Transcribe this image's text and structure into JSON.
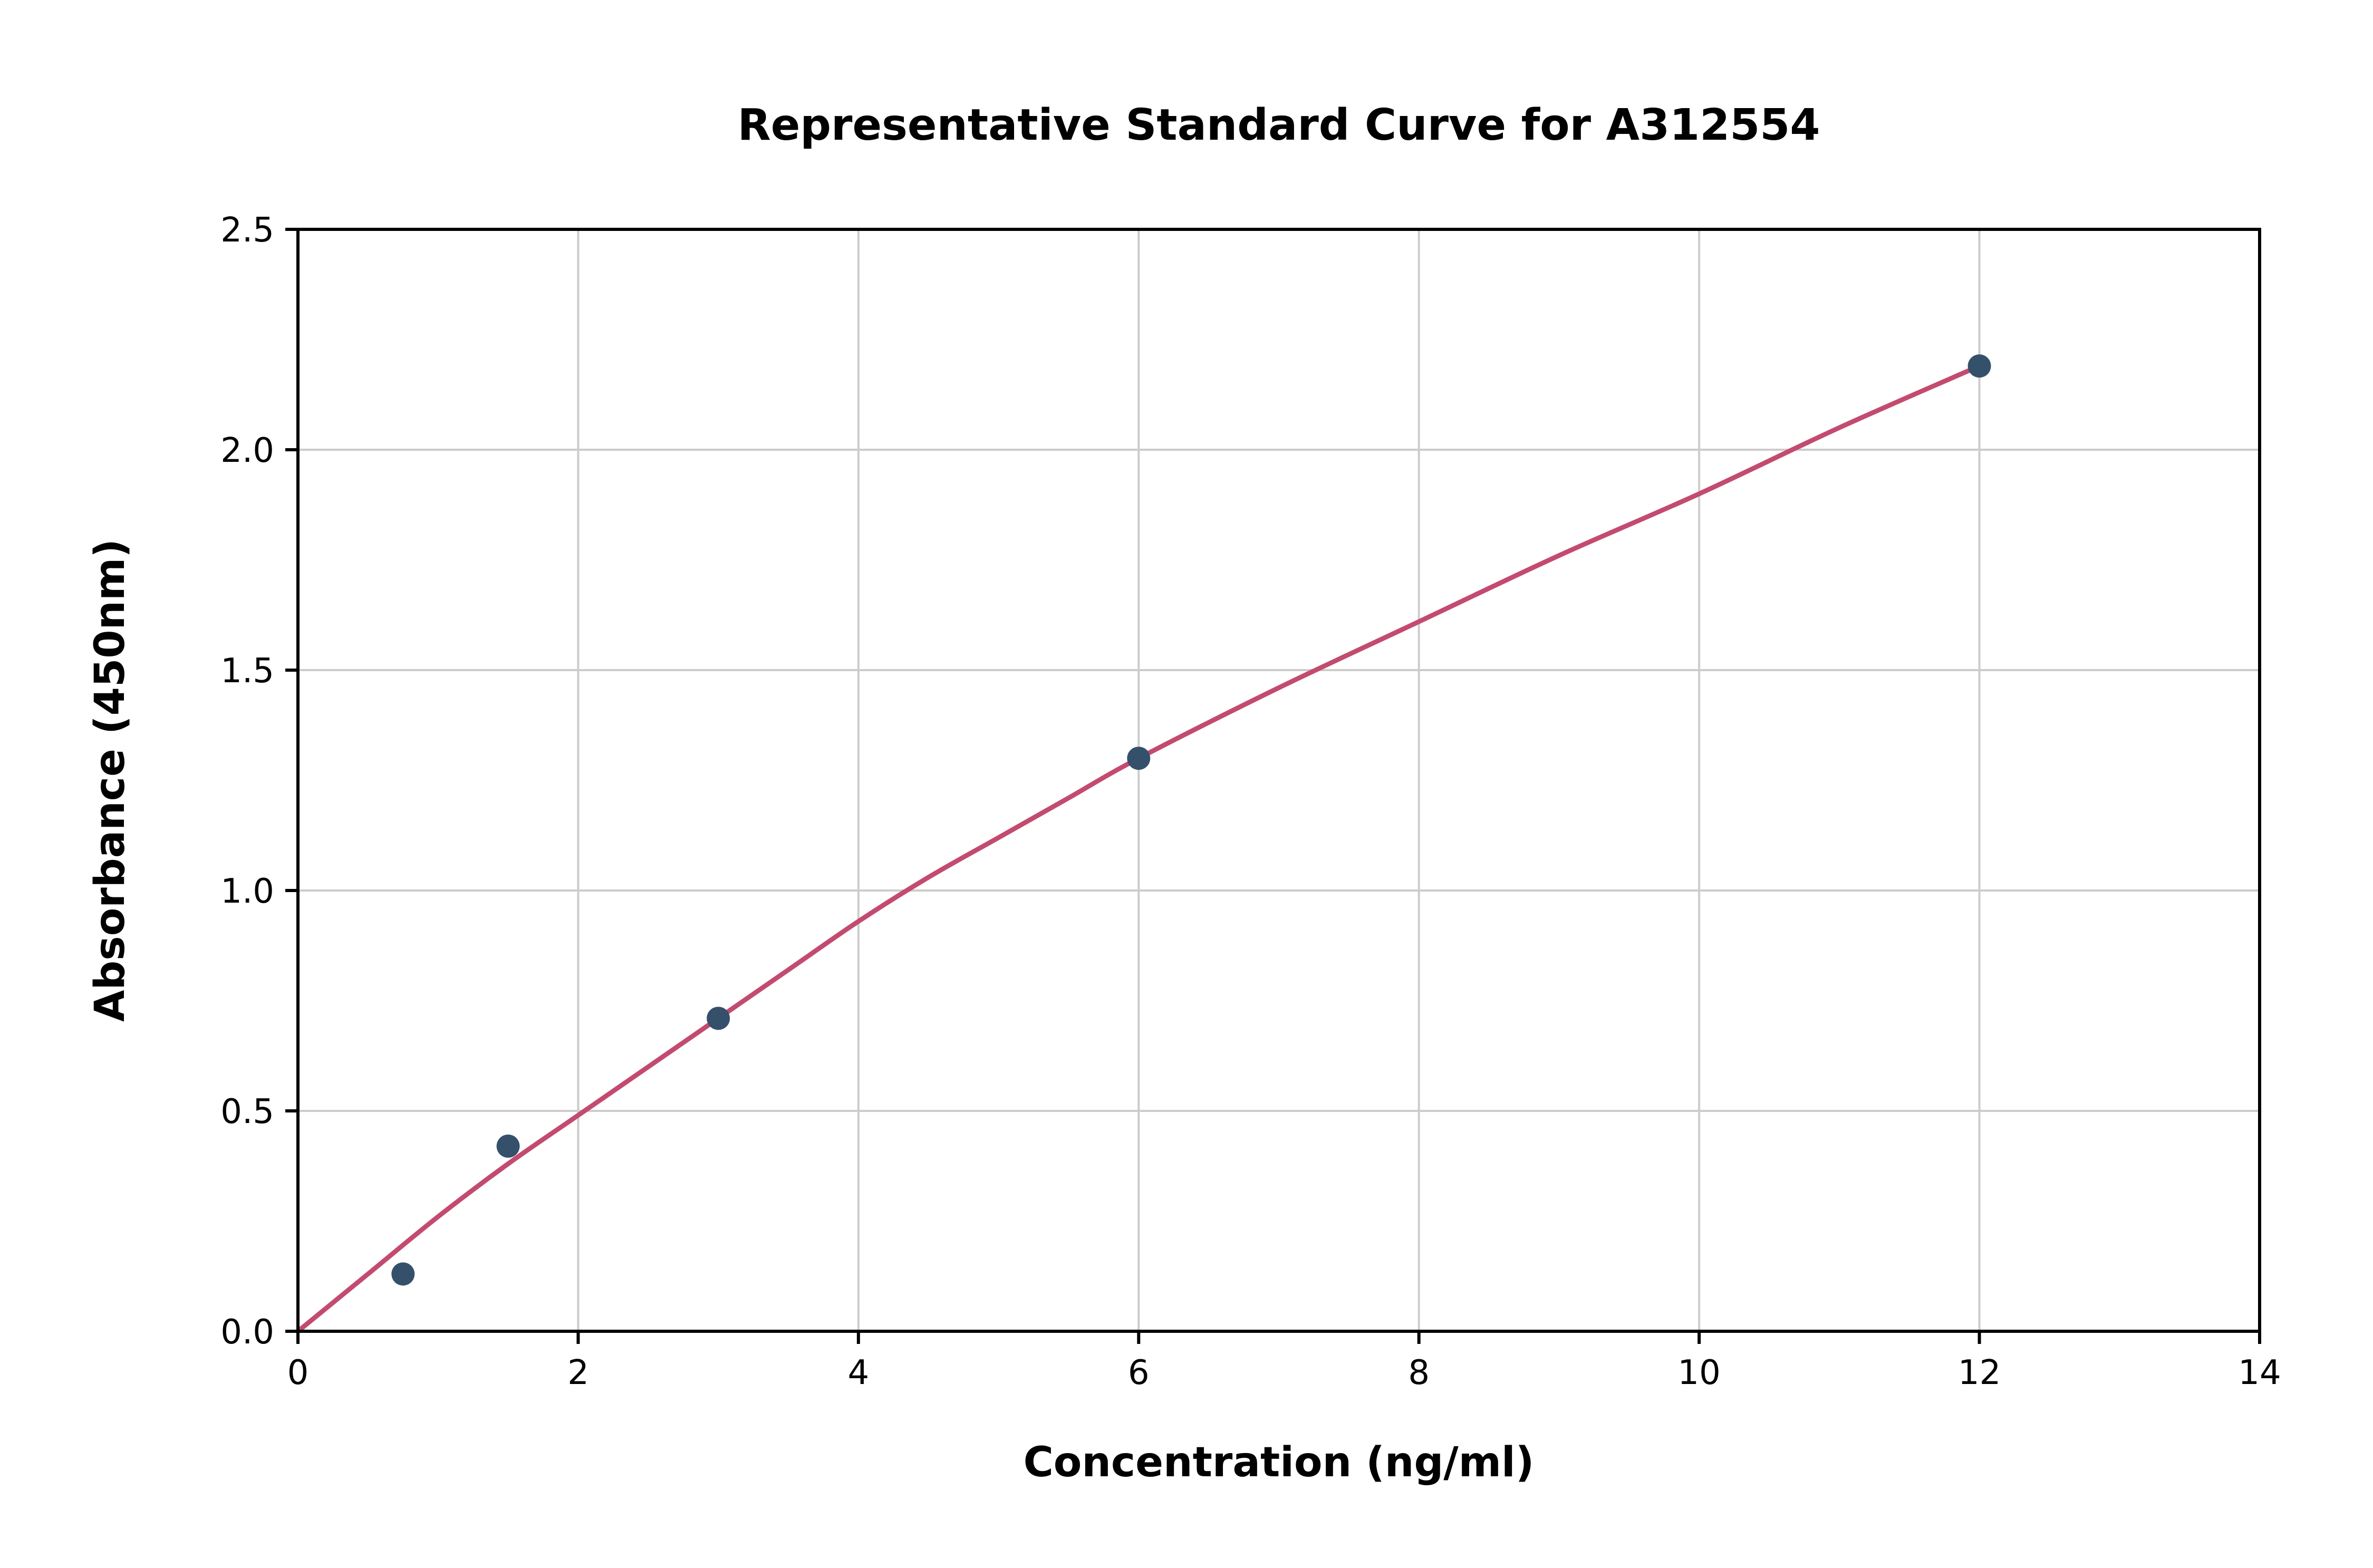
{
  "chart_data": {
    "type": "scatter",
    "title": "Representative Standard Curve for A312554",
    "xlabel": "Concentration (ng/ml)",
    "ylabel": "Absorbance (450nm)",
    "xlim": [
      0,
      14
    ],
    "ylim": [
      0,
      2.5
    ],
    "xticks": [
      0,
      2,
      4,
      6,
      8,
      10,
      12,
      14
    ],
    "xtick_labels": [
      "0",
      "2",
      "4",
      "6",
      "8",
      "10",
      "12",
      "14"
    ],
    "yticks": [
      0,
      0.5,
      1.0,
      1.5,
      2.0,
      2.5
    ],
    "ytick_labels": [
      "0.0",
      "0.5",
      "1.0",
      "1.5",
      "2.0",
      "2.5"
    ],
    "grid": true,
    "legend_position": "none",
    "colors": {
      "curve": "#c34b70",
      "points": "#35506b",
      "grid": "#cccccc",
      "frame": "#000000",
      "background": "#ffffff"
    },
    "series": [
      {
        "name": "standard-points",
        "kind": "scatter",
        "x": [
          0.75,
          1.5,
          3,
          6,
          12
        ],
        "y": [
          0.13,
          0.42,
          0.71,
          1.3,
          2.19
        ]
      },
      {
        "name": "fitted-curve",
        "kind": "line",
        "x": [
          0,
          0.5,
          1,
          1.5,
          2,
          2.5,
          3,
          3.5,
          4,
          4.5,
          5,
          5.5,
          6,
          7,
          8,
          9,
          10,
          11,
          12
        ],
        "y": [
          0,
          0.13,
          0.26,
          0.38,
          0.49,
          0.6,
          0.71,
          0.82,
          0.93,
          1.03,
          1.12,
          1.21,
          1.3,
          1.46,
          1.61,
          1.76,
          1.9,
          2.05,
          2.19
        ]
      }
    ]
  }
}
